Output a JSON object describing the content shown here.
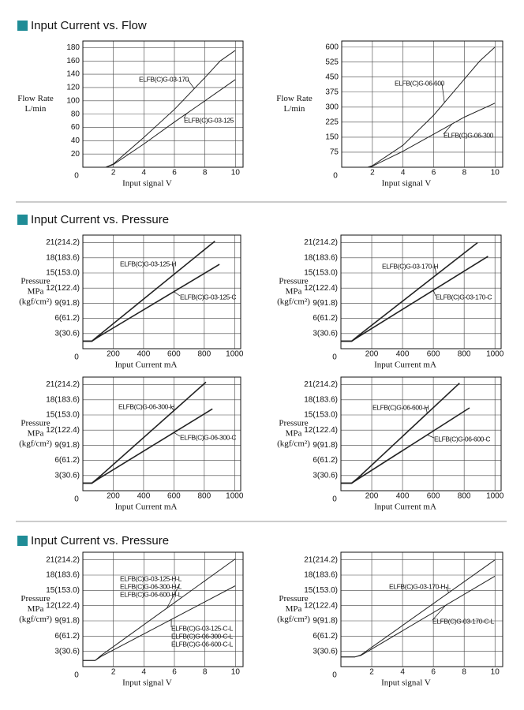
{
  "headings": [
    "Input Current vs. Flow",
    "Input Current vs. Pressure",
    "Input Current vs. Pressure"
  ],
  "chart_data": [
    {
      "type": "line",
      "xlabel": "Input signal V",
      "ylabel": [
        "Flow Rate",
        "L/min"
      ],
      "xlim": [
        0,
        10.5
      ],
      "ylim": [
        0,
        190
      ],
      "xticks": [
        2,
        4,
        6,
        8,
        10
      ],
      "yticks": [
        0,
        20,
        40,
        60,
        80,
        100,
        120,
        140,
        160,
        180
      ],
      "grid": true,
      "series": [
        {
          "name": "ELFB(C)G-03-170",
          "color": "#222222",
          "x": [
            1.5,
            2,
            4,
            6,
            8,
            9,
            10
          ],
          "values": [
            0,
            5,
            45,
            87,
            135,
            160,
            176
          ]
        },
        {
          "name": "ELFB(C)G-03-125",
          "color": "#222222",
          "x": [
            1.5,
            2,
            4,
            6,
            8,
            10
          ],
          "values": [
            0,
            4,
            35,
            68,
            100,
            132
          ]
        }
      ]
    },
    {
      "type": "line",
      "xlabel": "Input signal V",
      "ylabel": [
        "Flow Rate",
        "L/min"
      ],
      "xlim": [
        0,
        10.5
      ],
      "ylim": [
        0,
        630
      ],
      "xticks": [
        2,
        4,
        6,
        8,
        10
      ],
      "yticks": [
        0,
        75,
        150,
        225,
        300,
        375,
        450,
        525,
        600
      ],
      "grid": true,
      "series": [
        {
          "name": "ELFB(C)G-06-600",
          "color": "#222222",
          "x": [
            1.7,
            2,
            4,
            6,
            8,
            9,
            10
          ],
          "values": [
            0,
            8,
            110,
            260,
            440,
            530,
            600
          ]
        },
        {
          "name": "ELFB(C)G-06-300",
          "color": "#222222",
          "x": [
            1.7,
            2,
            4,
            6,
            8,
            10
          ],
          "values": [
            0,
            5,
            80,
            165,
            250,
            320
          ]
        }
      ]
    },
    {
      "type": "line",
      "xlabel": "Input Current  mA",
      "ylabel": [
        "Pressure",
        "MPa",
        "(kgf/cm²)"
      ],
      "xlim": [
        0,
        1040
      ],
      "ylim": [
        0,
        22.5
      ],
      "xticks": [
        200,
        400,
        600,
        800,
        1000
      ],
      "yticks": [
        0,
        {
          "value": 3,
          "label": "3(30.6)"
        },
        {
          "value": 6,
          "label": "6(61.2)"
        },
        {
          "value": 9,
          "label": "9(91.8)"
        },
        {
          "value": 12,
          "label": "12(122.4)"
        },
        {
          "value": 15,
          "label": "15(153.0)"
        },
        {
          "value": 18,
          "label": "18(183.6)"
        },
        {
          "value": 21,
          "label": "21(214.2)"
        }
      ],
      "grid": true,
      "series": [
        {
          "name": "ELFB(C)G-03-125-H",
          "color": "#222222",
          "x": [
            0,
            60,
            100,
            870
          ],
          "values": [
            1.5,
            1.5,
            2.5,
            21.3
          ]
        },
        {
          "name": "ELFB(C)G-03-125-C",
          "color": "#222222",
          "x": [
            0,
            60,
            100,
            900
          ],
          "values": [
            1.5,
            1.5,
            2.3,
            16.7
          ]
        }
      ]
    },
    {
      "type": "line",
      "xlabel": "Input Current  mA",
      "ylabel": [
        "Pressure",
        "MPa",
        "(kgf/cm²)"
      ],
      "xlim": [
        0,
        1040
      ],
      "ylim": [
        0,
        22.5
      ],
      "xticks": [
        200,
        400,
        600,
        800,
        1000
      ],
      "yticks": [
        0,
        {
          "value": 3,
          "label": "3(30.6)"
        },
        {
          "value": 6,
          "label": "6(61.2)"
        },
        {
          "value": 9,
          "label": "9(91.8)"
        },
        {
          "value": 12,
          "label": "12(122.4)"
        },
        {
          "value": 15,
          "label": "15(153.0)"
        },
        {
          "value": 18,
          "label": "18(183.6)"
        },
        {
          "value": 21,
          "label": "21(214.2)"
        }
      ],
      "grid": true,
      "series": [
        {
          "name": "ELFB(C)G-03-170-H",
          "color": "#222222",
          "x": [
            0,
            70,
            110,
            887
          ],
          "values": [
            1.5,
            1.5,
            2.5,
            21
          ]
        },
        {
          "name": "ELFB(C)G-03-170-C",
          "color": "#222222",
          "x": [
            0,
            70,
            110,
            955
          ],
          "values": [
            1.5,
            1.5,
            2.3,
            18.3
          ]
        }
      ]
    },
    {
      "type": "line",
      "xlabel": "Input Current  mA",
      "ylabel": [
        "Pressure",
        "MPa",
        "(kgf/cm²)"
      ],
      "xlim": [
        0,
        1040
      ],
      "ylim": [
        0,
        22.5
      ],
      "xticks": [
        200,
        400,
        600,
        800,
        1000
      ],
      "yticks": [
        0,
        {
          "value": 3,
          "label": "3(30.6)"
        },
        {
          "value": 6,
          "label": "6(61.2)"
        },
        {
          "value": 9,
          "label": "9(91.8)"
        },
        {
          "value": 12,
          "label": "12(122.4)"
        },
        {
          "value": 15,
          "label": "15(153.0)"
        },
        {
          "value": 18,
          "label": "18(183.6)"
        },
        {
          "value": 21,
          "label": "21(214.2)"
        }
      ],
      "grid": true,
      "series": [
        {
          "name": "ELFB(C)G-06-300-H",
          "color": "#222222",
          "x": [
            0,
            60,
            100,
            811
          ],
          "values": [
            1.5,
            1.5,
            2.5,
            21.5
          ]
        },
        {
          "name": "ELFB(C)G-06-300-C",
          "color": "#222222",
          "x": [
            0,
            60,
            100,
            854
          ],
          "values": [
            1.5,
            1.5,
            2.3,
            16.2
          ]
        }
      ]
    },
    {
      "type": "line",
      "xlabel": "Input Current  mA",
      "ylabel": [
        "Pressure",
        "MPa",
        "(kgf/cm²)"
      ],
      "xlim": [
        0,
        1040
      ],
      "ylim": [
        0,
        22.5
      ],
      "xticks": [
        200,
        400,
        600,
        800,
        1000
      ],
      "yticks": [
        0,
        {
          "value": 3,
          "label": "3(30.6)"
        },
        {
          "value": 6,
          "label": "6(61.2)"
        },
        {
          "value": 9,
          "label": "9(91.8)"
        },
        {
          "value": 12,
          "label": "12(122.4)"
        },
        {
          "value": 15,
          "label": "15(153.0)"
        },
        {
          "value": 18,
          "label": "18(183.6)"
        },
        {
          "value": 21,
          "label": "21(214.2)"
        }
      ],
      "grid": true,
      "series": [
        {
          "name": "ELFB(C)G-06-600-H",
          "color": "#222222",
          "x": [
            0,
            70,
            110,
            770
          ],
          "values": [
            1.5,
            1.5,
            2.5,
            21.3
          ]
        },
        {
          "name": "ELFB(C)G-06-600-C",
          "color": "#222222",
          "x": [
            0,
            70,
            110,
            835
          ],
          "values": [
            1.5,
            1.5,
            2.3,
            16.4
          ]
        }
      ]
    },
    {
      "type": "line",
      "xlabel": "Input signal V",
      "ylabel": [
        "Pressure",
        "MPa",
        "(kgf/cm²)"
      ],
      "xlim": [
        0,
        10.5
      ],
      "ylim": [
        0,
        22.5
      ],
      "xticks": [
        2,
        4,
        6,
        8,
        10
      ],
      "yticks": [
        0,
        {
          "value": 3,
          "label": "3(30.6)"
        },
        {
          "value": 6,
          "label": "6(61.2)"
        },
        {
          "value": 9,
          "label": "9(91.8)"
        },
        {
          "value": 12,
          "label": "12(122.4)"
        },
        {
          "value": 15,
          "label": "15(153.0)"
        },
        {
          "value": 18,
          "label": "18(183.6)"
        },
        {
          "value": 21,
          "label": "21(214.2)"
        }
      ],
      "grid": true,
      "series": [
        {
          "name": [
            "ELFB(C)G-03-125-H-L",
            "ELFB(C)G-06-300-H-L",
            "ELFB(C)G-06-600-H-L"
          ],
          "color": "#222222",
          "x": [
            0,
            0.8,
            1.2,
            10
          ],
          "values": [
            1.2,
            1.2,
            2.2,
            21.2
          ]
        },
        {
          "name": [
            "ELFB(C)G-03-125-C-L",
            "ELFB(C)G-06-300-C-L",
            "ELFB(C)G-06-600-C-L"
          ],
          "color": "#222222",
          "x": [
            0,
            0.8,
            1.2,
            10
          ],
          "values": [
            1.2,
            1.2,
            2.0,
            15.9
          ]
        }
      ]
    },
    {
      "type": "line",
      "xlabel": "Input signal V",
      "ylabel": [
        "Pressure",
        "MPa",
        "(kgf/cm²)"
      ],
      "xlim": [
        0,
        10.5
      ],
      "ylim": [
        0,
        22.5
      ],
      "xticks": [
        2,
        4,
        6,
        8,
        10
      ],
      "yticks": [
        0,
        {
          "value": 3,
          "label": "3(30.6)"
        },
        {
          "value": 6,
          "label": "6(61.2)"
        },
        {
          "value": 9,
          "label": "9(91.8)"
        },
        {
          "value": 12,
          "label": "12(122.4)"
        },
        {
          "value": 15,
          "label": "15(153.0)"
        },
        {
          "value": 18,
          "label": "18(183.6)"
        },
        {
          "value": 21,
          "label": "21(214.2)"
        }
      ],
      "grid": true,
      "series": [
        {
          "name": "ELFB(C)G-03-170-H-L",
          "color": "#222222",
          "x": [
            0,
            0.9,
            1.3,
            10
          ],
          "values": [
            1.9,
            1.9,
            2.3,
            21
          ]
        },
        {
          "name": "ELFB(C)G-03-170-C-L",
          "color": "#222222",
          "x": [
            0,
            0.9,
            1.3,
            10
          ],
          "values": [
            1.9,
            1.9,
            2.2,
            17.8
          ]
        }
      ]
    }
  ]
}
